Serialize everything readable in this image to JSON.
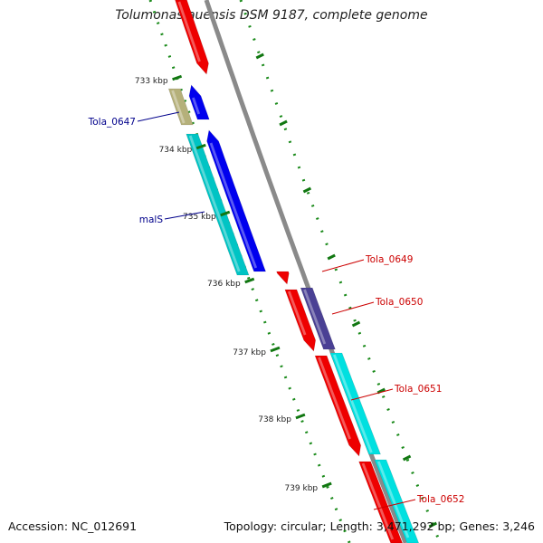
{
  "title": "Tolumonas auensis DSM 9187, complete genome",
  "footer": {
    "accession": "Accession: NC_012691",
    "topology": "Topology: circular; Length: 3,471,292 bp; Genes: 3,246"
  },
  "ticks": [
    "733 kbp",
    "734 kbp",
    "735 kbp",
    "736 kbp",
    "737 kbp",
    "738 kbp",
    "739 kbp"
  ],
  "gene_labels": {
    "left": [
      "Tola_0647",
      "malS"
    ],
    "right": [
      "Tola_0649",
      "Tola_0650",
      "Tola_0651",
      "Tola_0652"
    ]
  },
  "colors": {
    "backbone": "#8a8a8a",
    "red": "#ee0000",
    "blue": "#0000ee",
    "cyan": "#00e0e0",
    "teal": "#00c4c4",
    "olive": "#b5b07a",
    "slate": "#4a4094",
    "tick_green": "#117711",
    "left_label": "#00008b",
    "right_label": "#cc0000"
  }
}
